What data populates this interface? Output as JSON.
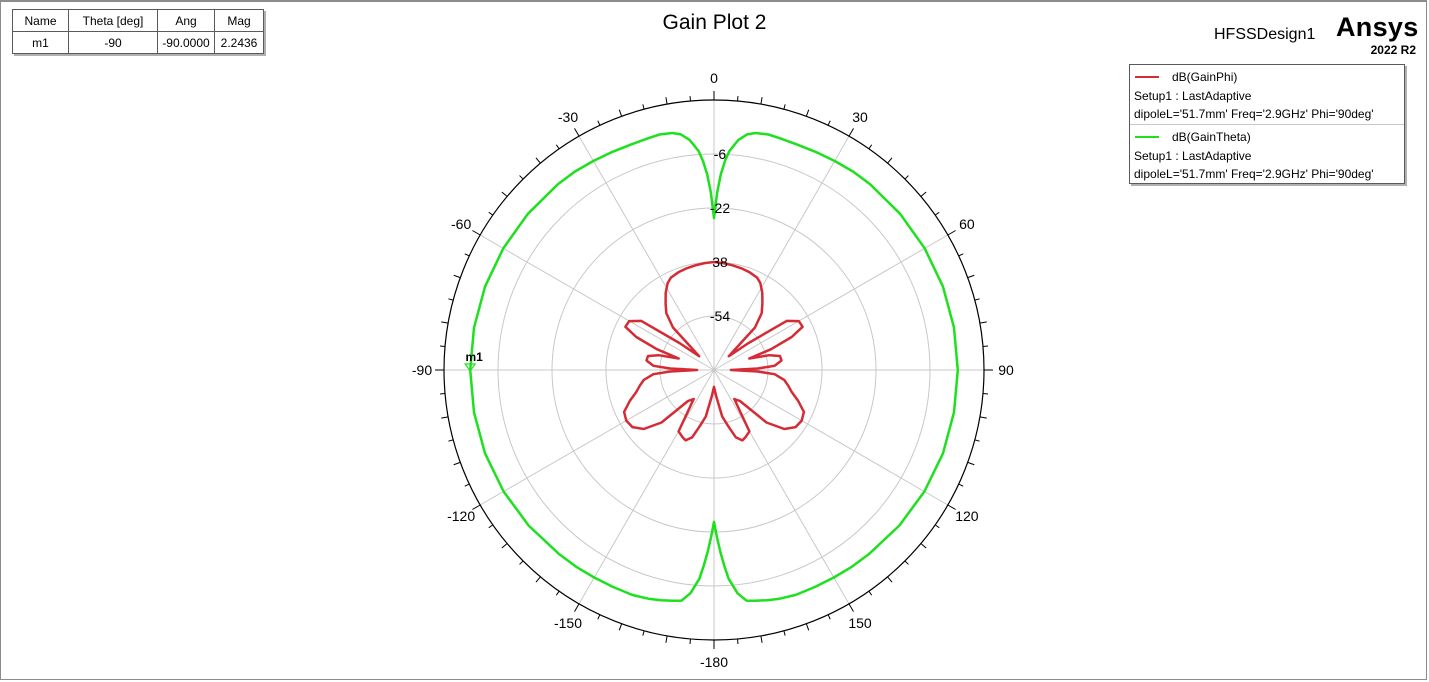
{
  "plot_title": "Gain Plot 2",
  "design_name": "HFSSDesign1",
  "logo": {
    "brand": "Ansys",
    "version": "2022 R2"
  },
  "marker_table": {
    "headers": [
      "Name",
      "Theta [deg]",
      "Ang",
      "Mag"
    ],
    "row": [
      "m1",
      "-90",
      "-90.0000",
      "2.2436"
    ]
  },
  "legend": [
    {
      "name": "dB(GainPhi)",
      "setup": "Setup1 : LastAdaptive",
      "variables": "dipoleL='51.7mm' Freq='2.9GHz' Phi='90deg'",
      "color": "#d42b35"
    },
    {
      "name": "dB(GainTheta)",
      "setup": "Setup1 : LastAdaptive",
      "variables": "dipoleL='51.7mm' Freq='2.9GHz' Phi='90deg'",
      "color": "#1ee01e"
    }
  ],
  "chart_data": {
    "type": "polar-line",
    "title": "Gain Plot 2",
    "angle_ticks": [
      0,
      30,
      60,
      90,
      120,
      150,
      -180,
      -150,
      -120,
      -90,
      -60,
      -30
    ],
    "radial_tick_labels": [
      "-6",
      "-22",
      "38",
      "-54"
    ],
    "radial_range": [
      -70,
      10
    ],
    "grid": true,
    "legend_position": "top-right",
    "marker": {
      "name": "m1",
      "theta": -90,
      "mag": 2.2436
    },
    "series": [
      {
        "name": "dB(GainTheta)",
        "color": "#1ee01e",
        "theta": [
          0,
          1,
          2,
          3,
          4,
          6,
          8,
          10,
          13,
          16,
          20,
          25,
          30,
          35,
          40,
          50,
          60,
          70,
          80,
          90,
          100,
          110,
          120,
          130,
          140,
          145,
          150,
          155,
          160,
          164,
          167,
          170,
          172,
          174,
          176,
          177,
          178,
          179,
          180
        ],
        "values": [
          -25.0,
          -17.5,
          -12.0,
          -8.0,
          -5.0,
          -1.5,
          0.5,
          1.3,
          1.6,
          1.4,
          1.2,
          1.3,
          1.5,
          1.8,
          1.9,
          2.0,
          2.1,
          2.2,
          2.2,
          2.24,
          2.2,
          2.2,
          2.0,
          1.7,
          1.3,
          1.2,
          1.0,
          0.9,
          0.9,
          0.5,
          0.0,
          -0.6,
          -1.0,
          -3.5,
          -8.0,
          -12.0,
          -16.0,
          -20.5,
          -25.0
        ]
      },
      {
        "name": "dB(GainPhi)",
        "color": "#d42b35",
        "theta": [
          0,
          5,
          10,
          15,
          20,
          25,
          28,
          32,
          36,
          40,
          44,
          47,
          52,
          56,
          60,
          64,
          67,
          70,
          72,
          75,
          78,
          82,
          86,
          88,
          90,
          92,
          94,
          98,
          102,
          106,
          110,
          115,
          120,
          125,
          130,
          135,
          140,
          145,
          150,
          155,
          158,
          162,
          166,
          170,
          175,
          180
        ],
        "values": [
          -38.0,
          -38.2,
          -38.5,
          -38.8,
          -39.2,
          -39.8,
          -40.8,
          -43.0,
          -45.6,
          -48.0,
          -52.5,
          -64.0,
          -57.0,
          -44.0,
          -41.0,
          -40.8,
          -45.0,
          -52.0,
          -59.0,
          -53.0,
          -50.0,
          -49.8,
          -52.0,
          -57.0,
          -65.0,
          -57.0,
          -52.0,
          -49.0,
          -47.5,
          -46.0,
          -43.5,
          -40.6,
          -40.0,
          -40.5,
          -42.8,
          -48.0,
          -58.0,
          -59.5,
          -49.0,
          -48.0,
          -47.5,
          -49.0,
          -53.0,
          -56.0,
          -62.0,
          -65.0
        ]
      }
    ]
  }
}
